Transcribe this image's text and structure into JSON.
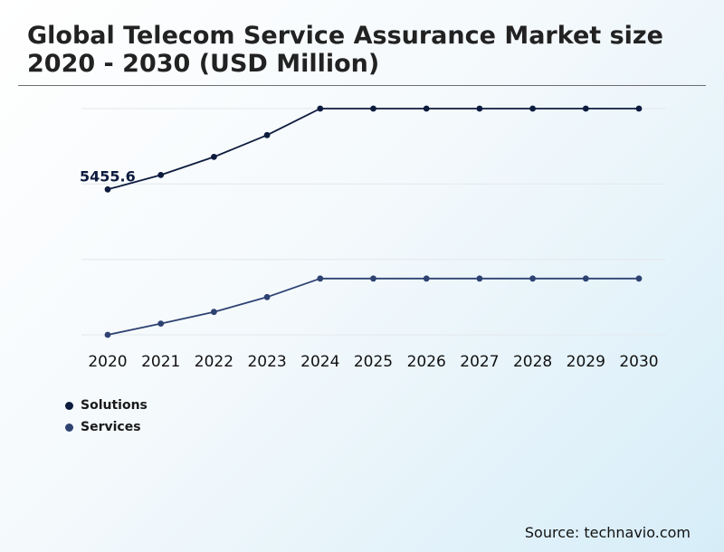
{
  "title": "Global Telecom Service Assurance Market size 2020 - 2030 (USD Million)",
  "source": "Source: technavio.com",
  "chart_data": {
    "type": "line",
    "categories": [
      "2020",
      "2021",
      "2022",
      "2023",
      "2024",
      "2025",
      "2026",
      "2027",
      "2028",
      "2029",
      "2030"
    ],
    "series": [
      {
        "name": "Solutions",
        "color": "#0d1b3e",
        "values": [
          5455.6,
          5850,
          6350,
          6950,
          7680,
          7680,
          7680,
          7680,
          7680,
          7680,
          7680
        ]
      },
      {
        "name": "Services",
        "color": "#2e4272",
        "values": [
          1450,
          1760,
          2080,
          2490,
          3000,
          3000,
          3000,
          3000,
          3000,
          3000,
          3000
        ]
      }
    ],
    "annotations": [
      {
        "series": 0,
        "index": 0,
        "text": "5455.6"
      }
    ],
    "ylim": [
      1450,
      7680
    ],
    "grid": true,
    "legend": "bottom-left"
  }
}
